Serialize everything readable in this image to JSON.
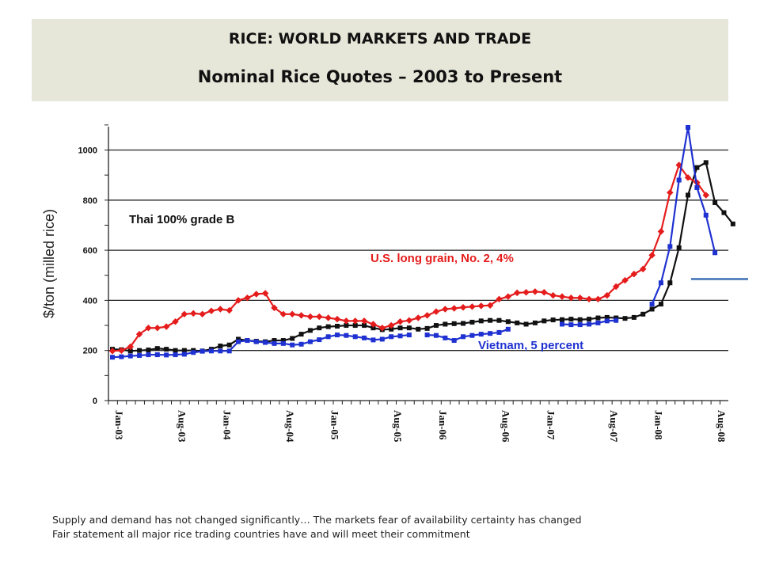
{
  "header": {
    "title": "RICE: WORLD MARKETS AND TRADE",
    "subtitle": "Nominal Rice Quotes – 2003 to Present"
  },
  "footer": {
    "line1": "Supply and demand has not changed significantly… The markets fear of availability certainty has changed",
    "line2": "Fair statement all major rice trading countries have and will meet their commitment"
  },
  "chart_data": {
    "type": "line",
    "title": "",
    "ylabel": "$/ton (milled rice)",
    "xlabel": "",
    "ylim": [
      0,
      1100
    ],
    "yticks": [
      0,
      200,
      400,
      600,
      800,
      1000
    ],
    "x_start": "Jan-03",
    "x_tick_labels": [
      "Jan-03",
      "Aug-03",
      "Jan-04",
      "Aug-04",
      "Jan-05",
      "Aug-05",
      "Jan-06",
      "Aug-06",
      "Jan-07",
      "Aug-07",
      "Jan-08",
      "Aug-08"
    ],
    "grid": true,
    "colors": {
      "thai": "#111111",
      "us": "#e51c1c",
      "vietnam": "#1f31d1",
      "accent": "#5b86c0"
    },
    "series": [
      {
        "name": "Thai 100% grade B",
        "color": "#111111",
        "values": [
          205,
          203,
          198,
          200,
          202,
          208,
          205,
          200,
          200,
          200,
          198,
          205,
          218,
          222,
          245,
          240,
          237,
          235,
          240,
          240,
          248,
          265,
          280,
          290,
          295,
          297,
          300,
          300,
          300,
          290,
          283,
          285,
          290,
          290,
          285,
          288,
          300,
          305,
          307,
          308,
          313,
          318,
          320,
          320,
          315,
          310,
          305,
          310,
          318,
          322,
          323,
          325,
          323,
          325,
          330,
          332,
          330,
          328,
          332,
          345,
          365,
          385,
          470,
          610,
          820,
          930,
          950,
          790,
          750,
          705
        ]
      },
      {
        "name": "U.S. long grain, No. 2, 4%",
        "color": "#e51c1c",
        "values": [
          198,
          200,
          215,
          265,
          290,
          290,
          295,
          315,
          345,
          348,
          345,
          358,
          365,
          360,
          400,
          410,
          425,
          428,
          370,
          345,
          345,
          340,
          335,
          335,
          330,
          325,
          318,
          318,
          318,
          305,
          290,
          300,
          315,
          320,
          330,
          340,
          355,
          365,
          368,
          372,
          375,
          378,
          380,
          405,
          415,
          430,
          432,
          435,
          432,
          420,
          415,
          410,
          410,
          405,
          405,
          420,
          455,
          480,
          505,
          525,
          580,
          675,
          830,
          940,
          890,
          870,
          820
        ]
      },
      {
        "name": "Vietnam, 5 percent",
        "color": "#1f31d1",
        "values": [
          173,
          175,
          178,
          180,
          183,
          183,
          182,
          183,
          185,
          192,
          197,
          198,
          198,
          198,
          235,
          240,
          235,
          232,
          228,
          228,
          222,
          225,
          235,
          243,
          255,
          262,
          260,
          255,
          250,
          242,
          245,
          255,
          258,
          262,
          null,
          262,
          260,
          250,
          240,
          255,
          260,
          265,
          268,
          272,
          285,
          null,
          null,
          null,
          null,
          null,
          305,
          303,
          303,
          305,
          310,
          318,
          320,
          null,
          null,
          null,
          385,
          470,
          615,
          880,
          1090,
          850,
          740,
          590
        ]
      }
    ],
    "annotations": [
      "Thai 100% grade B",
      "U.S. long grain, No. 2, 4%",
      "Vietnam, 5 percent"
    ]
  }
}
